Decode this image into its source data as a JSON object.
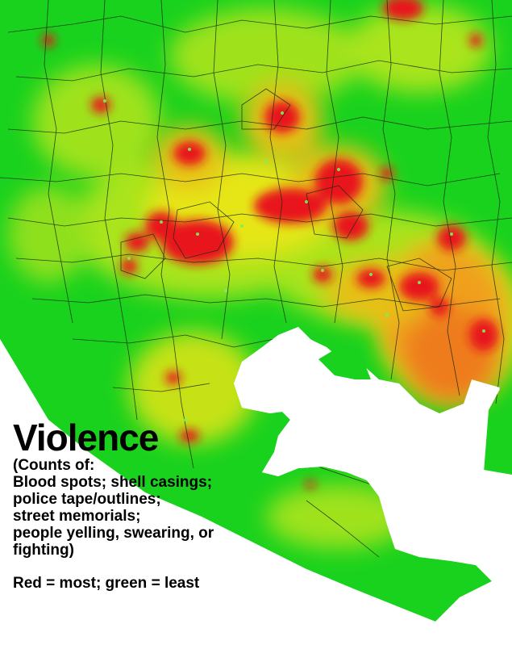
{
  "legend": {
    "title": "Violence",
    "subtitle_lines": [
      "(Counts of:",
      "Blood spots; shell casings;",
      "police tape/outlines;",
      "street memorials;",
      "people yelling, swearing, or",
      "fighting)"
    ],
    "key": "Red = most; green = least"
  },
  "colors": {
    "least": "#19d21e",
    "low": "#9fe21a",
    "mid": "#e6e617",
    "high": "#f08a1c",
    "most": "#e8141a",
    "water": "#ffffff",
    "boundary": "#1a2a10"
  },
  "icons": [
    "neighborhood-boundary-lines",
    "hotspot-blobs",
    "harbor-water"
  ]
}
